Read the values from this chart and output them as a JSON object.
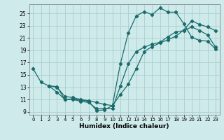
{
  "xlabel": "Humidex (Indice chaleur)",
  "xlim": [
    -0.5,
    23.5
  ],
  "ylim": [
    8.5,
    26.5
  ],
  "xticks": [
    0,
    1,
    2,
    3,
    4,
    5,
    6,
    7,
    8,
    9,
    10,
    11,
    12,
    13,
    14,
    15,
    16,
    17,
    18,
    19,
    20,
    21,
    22,
    23
  ],
  "yticks": [
    9,
    11,
    13,
    15,
    17,
    19,
    21,
    23,
    25
  ],
  "bg_color": "#ceeaea",
  "grid_color": "#aacece",
  "line_color": "#1a6b6b",
  "line1_x": [
    0,
    1,
    2,
    3,
    4,
    5,
    6,
    7,
    8,
    9,
    10,
    11,
    12,
    13,
    14,
    15,
    16,
    17,
    18,
    19,
    20,
    21,
    22,
    23
  ],
  "line1_y": [
    16.0,
    13.8,
    13.2,
    13.1,
    11.0,
    11.1,
    10.9,
    10.7,
    9.2,
    9.3,
    10.0,
    16.8,
    21.8,
    24.6,
    25.3,
    24.8,
    25.9,
    25.2,
    25.2,
    23.3,
    21.1,
    20.6,
    20.5,
    19.2
  ],
  "line2_x": [
    2,
    3,
    4,
    5,
    6,
    7,
    8,
    9,
    10,
    11,
    12,
    13,
    14,
    15,
    16,
    17,
    18,
    19,
    20,
    21,
    22,
    23
  ],
  "line2_y": [
    13.2,
    13.0,
    11.5,
    11.3,
    11.0,
    10.8,
    10.5,
    10.2,
    10.0,
    11.8,
    13.5,
    16.0,
    18.8,
    19.6,
    20.2,
    20.7,
    21.3,
    22.3,
    23.8,
    23.2,
    22.8,
    22.2
  ],
  "line3_x": [
    2,
    3,
    4,
    5,
    6,
    7,
    8,
    9,
    10,
    11,
    12,
    13,
    14,
    15,
    16,
    17,
    18,
    19,
    20,
    21,
    22,
    23
  ],
  "line3_y": [
    13.2,
    12.2,
    11.0,
    11.0,
    10.7,
    10.5,
    9.5,
    9.5,
    9.5,
    13.2,
    16.8,
    18.8,
    19.5,
    20.0,
    20.3,
    21.2,
    22.0,
    22.2,
    22.8,
    22.2,
    21.5,
    19.5
  ]
}
